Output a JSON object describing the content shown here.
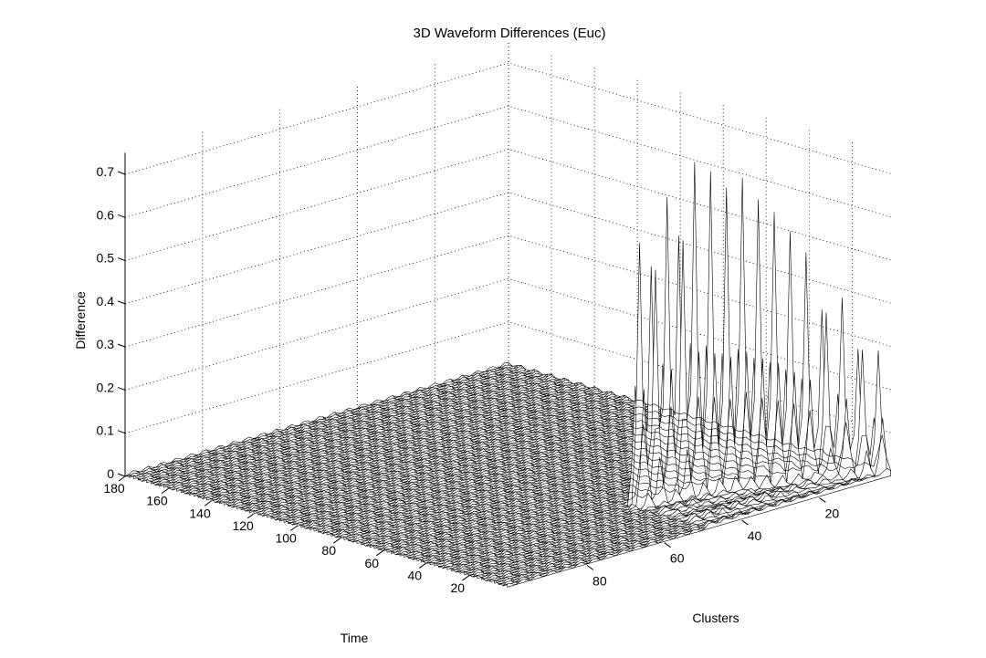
{
  "chart_data": {
    "type": "surface",
    "title": "3D Waveform Differences (Euc)",
    "xlabel": "Clusters",
    "ylabel": "Time",
    "zlabel": "Difference",
    "xlim": [
      1,
      100
    ],
    "ylim": [
      1,
      180
    ],
    "zlim": [
      0,
      0.75
    ],
    "x_ticks": [
      20,
      40,
      60,
      80
    ],
    "y_ticks": [
      20,
      40,
      60,
      80,
      100,
      120,
      140,
      160,
      180
    ],
    "z_ticks": [
      0,
      0.1,
      0.2,
      0.3,
      0.4,
      0.5,
      0.6,
      0.7
    ],
    "grid": true,
    "colors": {
      "mesh_edge": "#000000",
      "mesh_face": "#ffffff"
    },
    "peak_region": {
      "clusters": [
        1,
        48
      ],
      "time": [
        1,
        40
      ]
    },
    "peaks": [
      {
        "cluster": 2,
        "time": 6,
        "difference": 0.28
      },
      {
        "cluster": 5,
        "time": 9,
        "difference": 0.35
      },
      {
        "cluster": 8,
        "time": 12,
        "difference": 0.41
      },
      {
        "cluster": 11,
        "time": 15,
        "difference": 0.47
      },
      {
        "cluster": 14,
        "time": 18,
        "difference": 0.52
      },
      {
        "cluster": 17,
        "time": 20,
        "difference": 0.57
      },
      {
        "cluster": 20,
        "time": 22,
        "difference": 0.62
      },
      {
        "cluster": 23,
        "time": 24,
        "difference": 0.66
      },
      {
        "cluster": 26,
        "time": 26,
        "difference": 0.72
      },
      {
        "cluster": 29,
        "time": 28,
        "difference": 0.7
      },
      {
        "cluster": 32,
        "time": 30,
        "difference": 0.74
      },
      {
        "cluster": 35,
        "time": 32,
        "difference": 0.76
      },
      {
        "cluster": 38,
        "time": 33,
        "difference": 0.73
      },
      {
        "cluster": 41,
        "time": 34,
        "difference": 0.7
      },
      {
        "cluster": 44,
        "time": 35,
        "difference": 0.66
      },
      {
        "cluster": 47,
        "time": 36,
        "difference": 0.6
      }
    ]
  }
}
